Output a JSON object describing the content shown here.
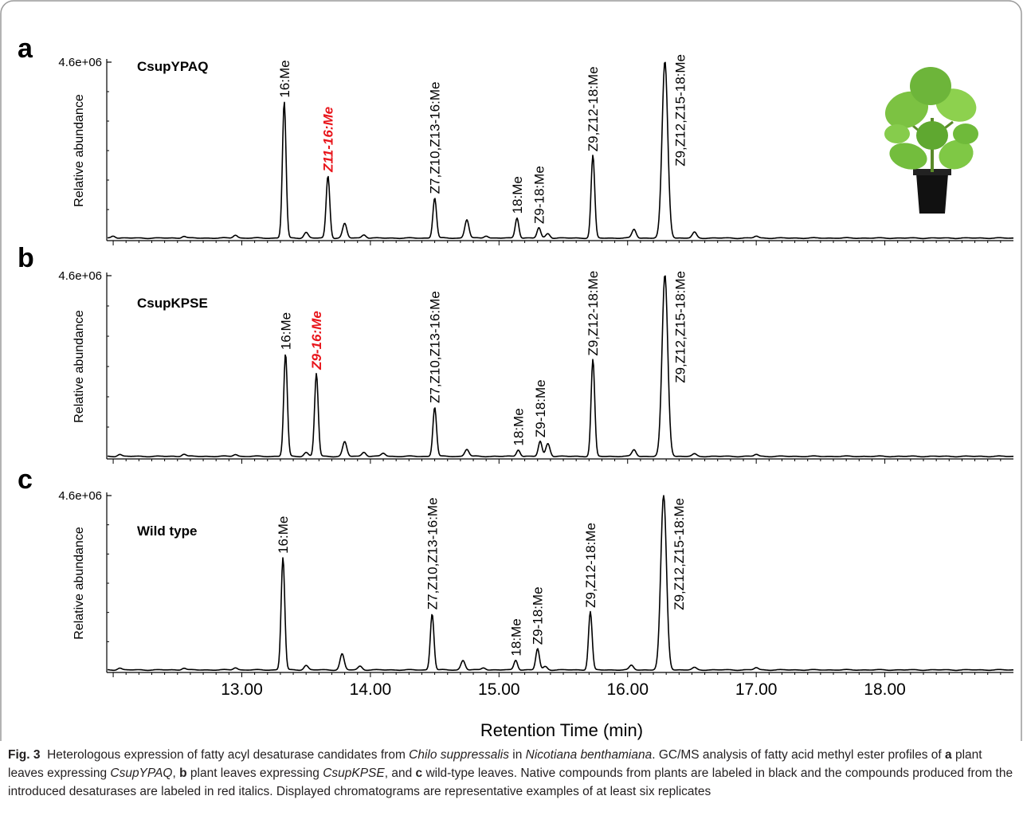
{
  "figure": {
    "x_axis_label": "Retention Time (min)",
    "x_ticks": [
      "13.00",
      "14.00",
      "15.00",
      "16.00",
      "17.00",
      "18.00"
    ],
    "y_axis_label": "Relative abundance",
    "y_max_label": "4.6e+06",
    "line_color": "#000000",
    "highlight_color": "#e8151b",
    "plant_icon": "potted-plant-photo"
  },
  "caption": {
    "fig_label": "Fig. 3",
    "segments": [
      {
        "text": "Heterologous expression of fatty acyl desaturase candidates from ",
        "style": "normal"
      },
      {
        "text": "Chilo suppressalis",
        "style": "italic"
      },
      {
        "text": " in ",
        "style": "normal"
      },
      {
        "text": "Nicotiana benthamiana",
        "style": "italic"
      },
      {
        "text": ". GC/MS analysis of fatty acid methyl ester profiles of ",
        "style": "normal"
      },
      {
        "text": "a",
        "style": "bold"
      },
      {
        "text": " plant leaves expressing ",
        "style": "normal"
      },
      {
        "text": "CsupYPAQ",
        "style": "italic"
      },
      {
        "text": ", ",
        "style": "normal"
      },
      {
        "text": "b",
        "style": "bold"
      },
      {
        "text": " plant leaves expressing ",
        "style": "normal"
      },
      {
        "text": "CsupKPSE",
        "style": "italic"
      },
      {
        "text": ", and ",
        "style": "normal"
      },
      {
        "text": "c",
        "style": "bold"
      },
      {
        "text": " wild-type leaves. Native compounds from plants are labeled in black and the compounds produced from the introduced desaturases are labeled in red italics. Displayed chromatograms are representative examples of at least six replicates",
        "style": "normal"
      }
    ]
  },
  "chart_data": [
    {
      "type": "line",
      "panel_letter": "a",
      "sample": "CsupYPAQ",
      "xlabel": "Retention Time (min)",
      "ylabel": "Relative abundance",
      "xlim": [
        11.95,
        19.0
      ],
      "ylim": [
        0,
        4600000
      ],
      "peaks": [
        {
          "rt": 13.33,
          "height": 3550000,
          "label": "16:Me",
          "highlight": false
        },
        {
          "rt": 13.67,
          "height": 1620000,
          "label": "Z11-16:Me",
          "highlight": true
        },
        {
          "rt": 14.5,
          "height": 1050000,
          "label": "Z7,Z10,Z13-16:Me",
          "highlight": false
        },
        {
          "rt": 15.14,
          "height": 530000,
          "label": "18:Me",
          "highlight": false
        },
        {
          "rt": 15.31,
          "height": 270000,
          "label": "Z9-18:Me",
          "highlight": false
        },
        {
          "rt": 15.73,
          "height": 2150000,
          "label": "Z9,Z12-18:Me",
          "highlight": false
        },
        {
          "rt": 16.29,
          "height": 4600000,
          "label": "Z9,Z12,Z15-18:Me",
          "highlight": false
        }
      ],
      "minor_peaks": [
        {
          "rt": 12.0,
          "height": 60000
        },
        {
          "rt": 12.55,
          "height": 50000
        },
        {
          "rt": 12.95,
          "height": 80000
        },
        {
          "rt": 13.5,
          "height": 150000
        },
        {
          "rt": 13.8,
          "height": 380000
        },
        {
          "rt": 13.95,
          "height": 90000
        },
        {
          "rt": 14.75,
          "height": 480000
        },
        {
          "rt": 14.9,
          "height": 60000
        },
        {
          "rt": 15.38,
          "height": 120000
        },
        {
          "rt": 16.05,
          "height": 230000
        },
        {
          "rt": 16.52,
          "height": 150000
        },
        {
          "rt": 17.0,
          "height": 50000
        }
      ]
    },
    {
      "type": "line",
      "panel_letter": "b",
      "sample": "CsupKPSE",
      "xlabel": "Retention Time (min)",
      "ylabel": "Relative abundance",
      "xlim": [
        11.95,
        19.0
      ],
      "ylim": [
        0,
        4600000
      ],
      "peaks": [
        {
          "rt": 13.34,
          "height": 2600000,
          "label": "16:Me",
          "highlight": false
        },
        {
          "rt": 13.58,
          "height": 2100000,
          "label": "Z9-16:Me",
          "highlight": true
        },
        {
          "rt": 14.5,
          "height": 1250000,
          "label": "Z7,Z10,Z13-16:Me",
          "highlight": false
        },
        {
          "rt": 15.15,
          "height": 170000,
          "label": "18:Me",
          "highlight": false
        },
        {
          "rt": 15.32,
          "height": 380000,
          "label": "Z9-18:Me",
          "highlight": false
        },
        {
          "rt": 15.73,
          "height": 2450000,
          "label": "Z9,Z12-18:Me",
          "highlight": false
        },
        {
          "rt": 16.29,
          "height": 4600000,
          "label": "Z9,Z12,Z15-18:Me",
          "highlight": false
        }
      ],
      "minor_peaks": [
        {
          "rt": 12.05,
          "height": 50000
        },
        {
          "rt": 12.55,
          "height": 60000
        },
        {
          "rt": 12.95,
          "height": 50000
        },
        {
          "rt": 13.5,
          "height": 100000
        },
        {
          "rt": 13.8,
          "height": 370000
        },
        {
          "rt": 13.95,
          "height": 110000
        },
        {
          "rt": 14.1,
          "height": 80000
        },
        {
          "rt": 14.75,
          "height": 180000
        },
        {
          "rt": 15.38,
          "height": 330000
        },
        {
          "rt": 16.05,
          "height": 170000
        },
        {
          "rt": 16.52,
          "height": 60000
        },
        {
          "rt": 17.0,
          "height": 50000
        }
      ]
    },
    {
      "type": "line",
      "panel_letter": "c",
      "sample": "Wild type",
      "xlabel": "Retention Time (min)",
      "ylabel": "Relative abundance",
      "xlim": [
        11.95,
        19.0
      ],
      "ylim": [
        0,
        4600000
      ],
      "peaks": [
        {
          "rt": 13.32,
          "height": 2950000,
          "label": "16:Me",
          "highlight": false
        },
        {
          "rt": 14.48,
          "height": 1480000,
          "label": "Z7,Z10,Z13-16:Me",
          "highlight": false
        },
        {
          "rt": 15.13,
          "height": 260000,
          "label": "18:Me",
          "highlight": false
        },
        {
          "rt": 15.3,
          "height": 560000,
          "label": "Z9-18:Me",
          "highlight": false
        },
        {
          "rt": 15.71,
          "height": 1530000,
          "label": "Z9,Z12-18:Me",
          "highlight": false
        },
        {
          "rt": 16.28,
          "height": 4600000,
          "label": "Z9,Z12,Z15-18:Me",
          "highlight": false
        }
      ],
      "minor_peaks": [
        {
          "rt": 12.05,
          "height": 50000
        },
        {
          "rt": 12.55,
          "height": 50000
        },
        {
          "rt": 12.95,
          "height": 60000
        },
        {
          "rt": 13.5,
          "height": 120000
        },
        {
          "rt": 13.78,
          "height": 420000
        },
        {
          "rt": 13.92,
          "height": 100000
        },
        {
          "rt": 14.72,
          "height": 250000
        },
        {
          "rt": 14.88,
          "height": 60000
        },
        {
          "rt": 15.36,
          "height": 90000
        },
        {
          "rt": 16.03,
          "height": 120000
        },
        {
          "rt": 16.52,
          "height": 60000
        },
        {
          "rt": 17.0,
          "height": 60000
        }
      ]
    }
  ]
}
